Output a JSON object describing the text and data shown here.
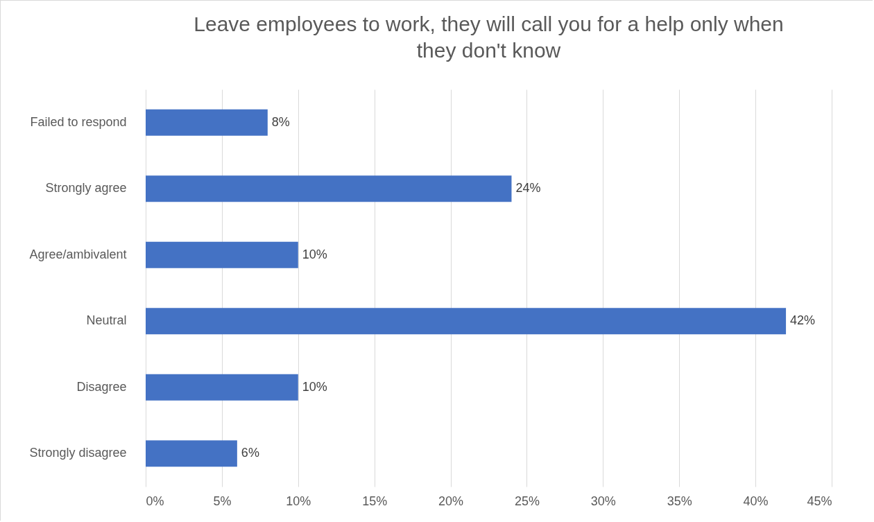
{
  "chart_data": {
    "type": "bar",
    "orientation": "horizontal",
    "title": "Leave employees to work, they will call you for a help only when they don't know",
    "categories": [
      "Failed to respond",
      "Strongly agree",
      "Agree/ambivalent",
      "Neutral",
      "Disagree",
      "Strongly disagree"
    ],
    "values": [
      8,
      24,
      10,
      42,
      10,
      6
    ],
    "value_labels": [
      "8%",
      "24%",
      "10%",
      "42%",
      "10%",
      "6%"
    ],
    "color": "#4472c4",
    "xlim": [
      0,
      45
    ],
    "xticks": [
      {
        "value": 0,
        "label": "0%"
      },
      {
        "value": 5,
        "label": "5%"
      },
      {
        "value": 10,
        "label": "10%"
      },
      {
        "value": 15,
        "label": "15%"
      },
      {
        "value": 20,
        "label": "20%"
      },
      {
        "value": 25,
        "label": "25%"
      },
      {
        "value": 30,
        "label": "30%"
      },
      {
        "value": 35,
        "label": "35%"
      },
      {
        "value": 40,
        "label": "40%"
      },
      {
        "value": 45,
        "label": "45%"
      }
    ],
    "grid": "x"
  }
}
